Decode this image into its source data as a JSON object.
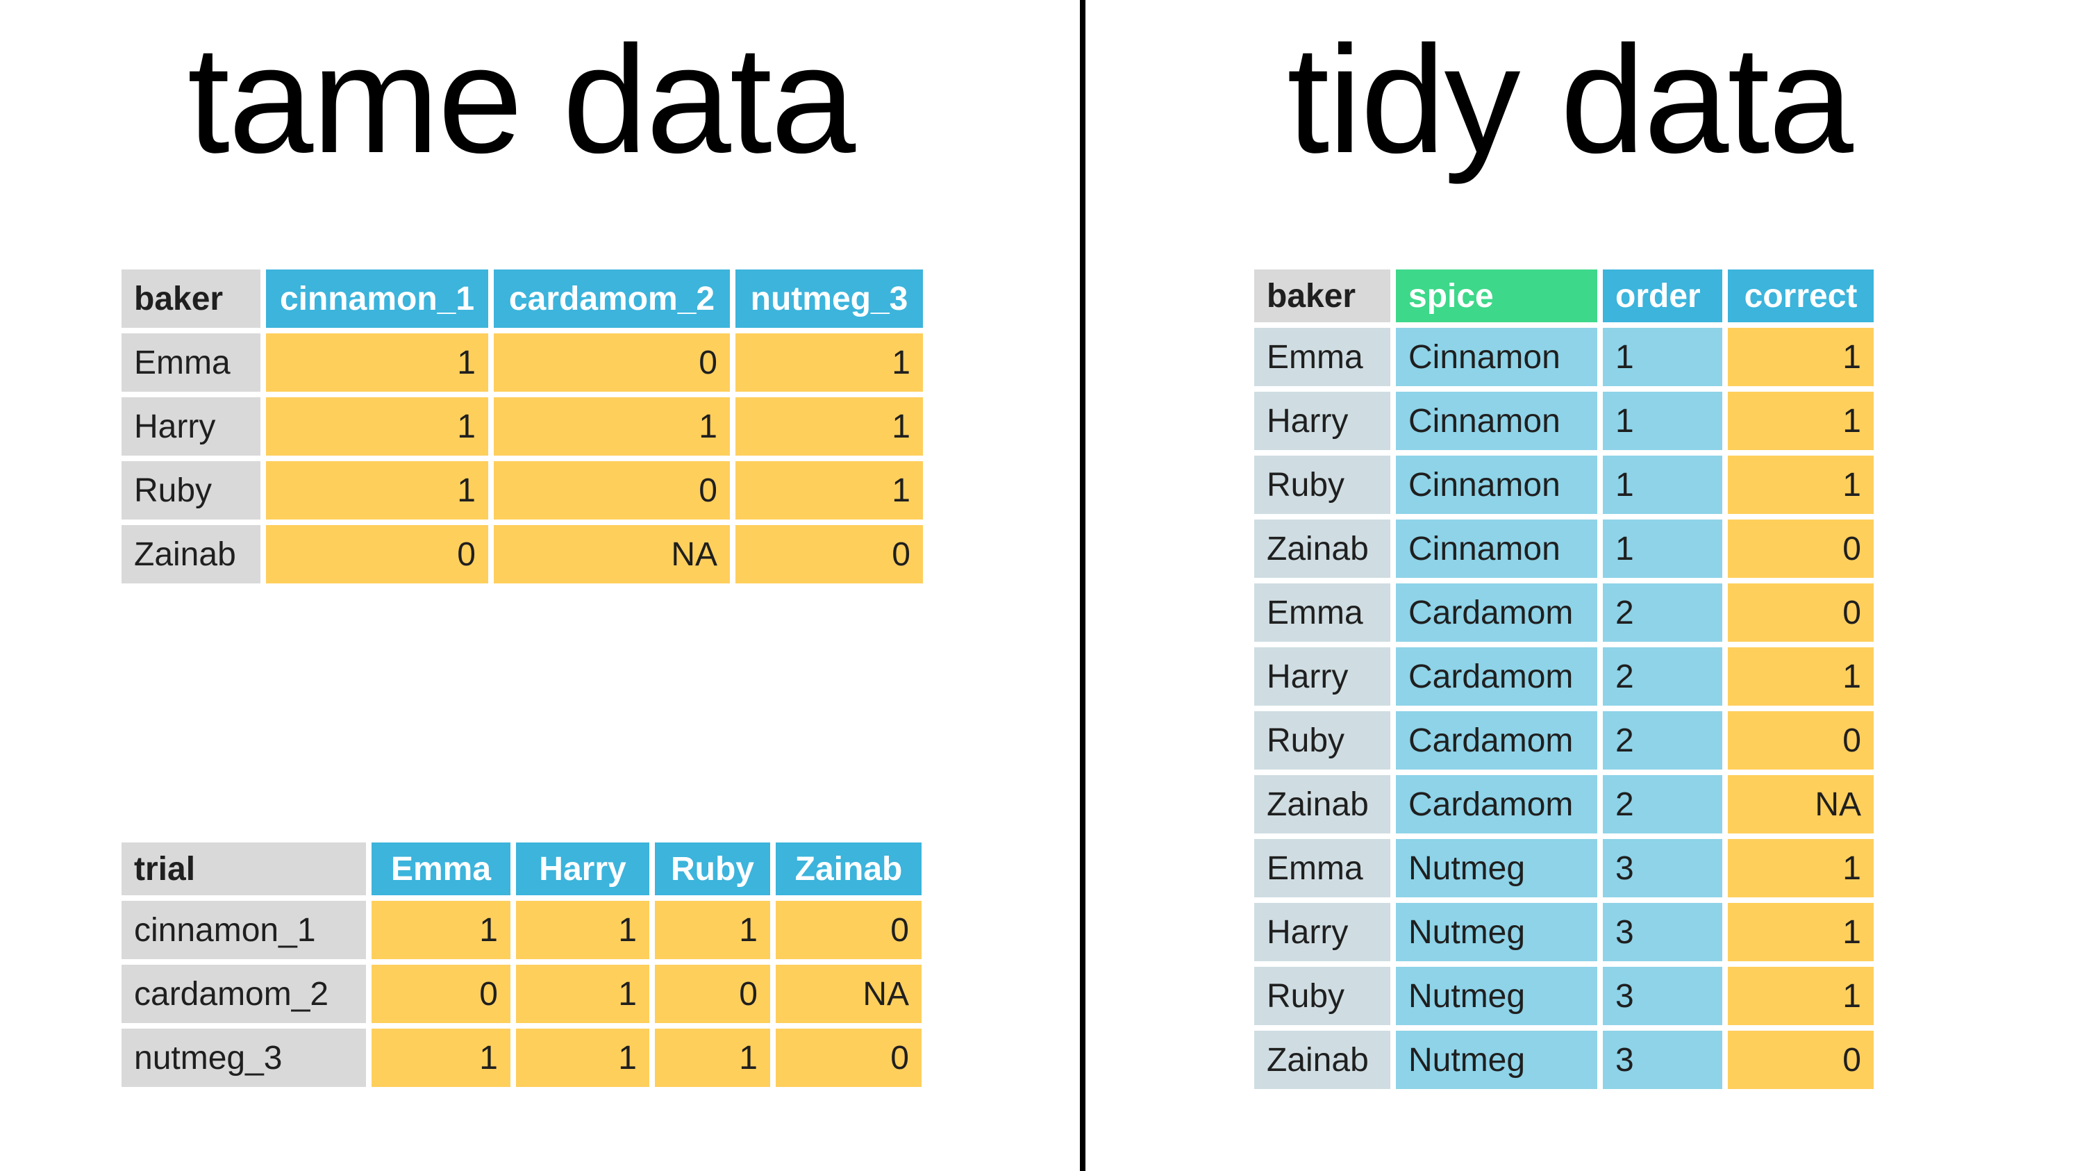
{
  "titles": {
    "left": "tame data",
    "right": "tidy data"
  },
  "tame_wide": {
    "headers": [
      "baker",
      "cinnamon_1",
      "cardamom_2",
      "nutmeg_3"
    ],
    "rows": [
      [
        "Emma",
        "1",
        "0",
        "1"
      ],
      [
        "Harry",
        "1",
        "1",
        "1"
      ],
      [
        "Ruby",
        "1",
        "0",
        "1"
      ],
      [
        "Zainab",
        "0",
        "NA",
        "0"
      ]
    ]
  },
  "tame_transposed": {
    "headers": [
      "trial",
      "Emma",
      "Harry",
      "Ruby",
      "Zainab"
    ],
    "rows": [
      [
        "cinnamon_1",
        "1",
        "1",
        "1",
        "0"
      ],
      [
        "cardamom_2",
        "0",
        "1",
        "0",
        "NA"
      ],
      [
        "nutmeg_3",
        "1",
        "1",
        "1",
        "0"
      ]
    ]
  },
  "tidy": {
    "headers": [
      "baker",
      "spice",
      "order",
      "correct"
    ],
    "rows": [
      [
        "Emma",
        "Cinnamon",
        "1",
        "1"
      ],
      [
        "Harry",
        "Cinnamon",
        "1",
        "1"
      ],
      [
        "Ruby",
        "Cinnamon",
        "1",
        "1"
      ],
      [
        "Zainab",
        "Cinnamon",
        "1",
        "0"
      ],
      [
        "Emma",
        "Cardamom",
        "2",
        "0"
      ],
      [
        "Harry",
        "Cardamom",
        "2",
        "1"
      ],
      [
        "Ruby",
        "Cardamom",
        "2",
        "0"
      ],
      [
        "Zainab",
        "Cardamom",
        "2",
        "NA"
      ],
      [
        "Emma",
        "Nutmeg",
        "3",
        "1"
      ],
      [
        "Harry",
        "Nutmeg",
        "3",
        "1"
      ],
      [
        "Ruby",
        "Nutmeg",
        "3",
        "1"
      ],
      [
        "Zainab",
        "Nutmeg",
        "3",
        "0"
      ]
    ]
  },
  "colors": {
    "header_grey": "#d9d9d9",
    "header_blue": "#3cb4dc",
    "header_green": "#3dd88a",
    "cell_yellow": "#ffcf5c",
    "cell_light_blue": "#8ed3e8"
  }
}
